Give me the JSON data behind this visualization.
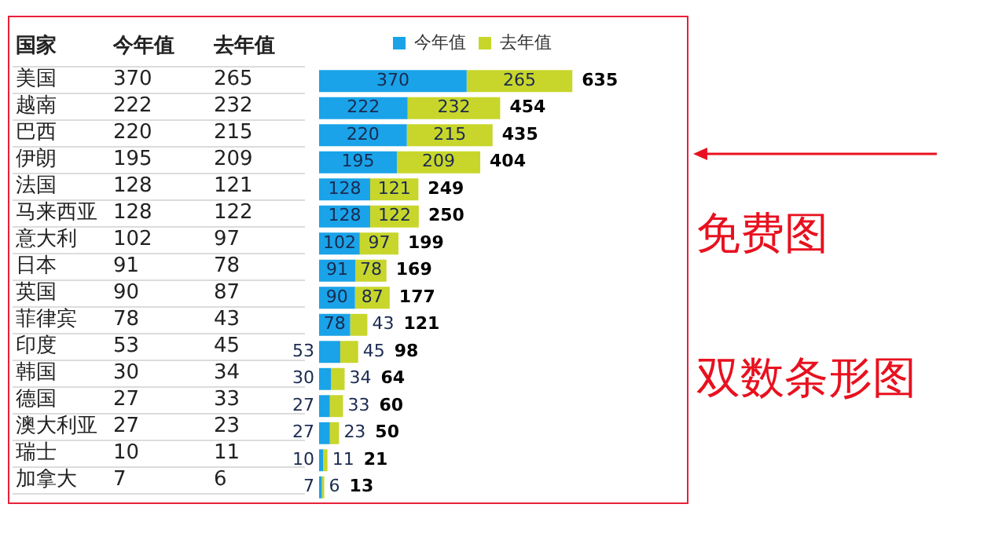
{
  "chart_data": [
    {
      "type": "heatmap",
      "ylabel": "国家",
      "categories": [
        "今年值",
        "去年值"
      ],
      "y_categories": [
        "美国",
        "越南",
        "巴西",
        "伊朗",
        "法国",
        "马来西亚",
        "意大利",
        "日本",
        "英国",
        "菲律宾",
        "印度",
        "韩国",
        "德国",
        "澳大利亚",
        "瑞士",
        "加拿大"
      ],
      "cells": [
        [
          370,
          265
        ],
        [
          222,
          232
        ],
        [
          220,
          215
        ],
        [
          195,
          209
        ],
        [
          128,
          121
        ],
        [
          128,
          122
        ],
        [
          102,
          97
        ],
        [
          91,
          78
        ],
        [
          90,
          87
        ],
        [
          78,
          43
        ],
        [
          53,
          45
        ],
        [
          30,
          34
        ],
        [
          27,
          33
        ],
        [
          27,
          23
        ],
        [
          10,
          11
        ],
        [
          7,
          6
        ]
      ],
      "data_labels": true
    },
    {
      "type": "bar",
      "orientation": "horizontal",
      "stacked": true,
      "categories": [
        null,
        null,
        null,
        null,
        null,
        null,
        null,
        null,
        null,
        null,
        null,
        null,
        null,
        null,
        null,
        null
      ],
      "series": [
        {
          "name": "今年值",
          "color": "#1aa3e8",
          "values": [
            370,
            222,
            220,
            195,
            128,
            128,
            102,
            91,
            90,
            78,
            53,
            30,
            27,
            27,
            10,
            7
          ]
        },
        {
          "name": "去年值",
          "color": "#c8d62b",
          "values": [
            265,
            232,
            215,
            209,
            121,
            122,
            97,
            78,
            87,
            43,
            45,
            34,
            33,
            23,
            11,
            6
          ]
        }
      ],
      "totals": [
        "635",
        "454",
        "435",
        "404",
        "249",
        "250",
        "199",
        "169",
        "177",
        "121",
        "98",
        "64",
        "60",
        "50",
        "21",
        "13"
      ],
      "data_labels": true,
      "legend": "top",
      "grid": false,
      "tick_labels": false,
      "annotations": [
        "免费图",
        "双数条形图"
      ]
    }
  ]
}
